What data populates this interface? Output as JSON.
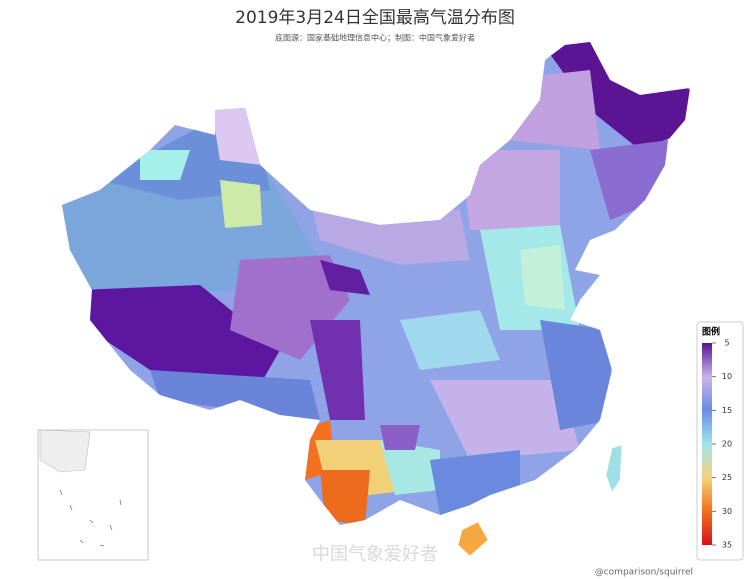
{
  "title": "2019年3月24日全国最高气温分布图",
  "subtitle": "底图源：国家基础地理信息中心；制图：中国气象爱好者",
  "legend": {
    "title": "图例",
    "range": [
      5,
      35
    ],
    "ticks": [
      5,
      10,
      15,
      20,
      25,
      30,
      35
    ]
  },
  "watermark": "中国气象爱好者",
  "credit": "@comparison/squirrel"
}
